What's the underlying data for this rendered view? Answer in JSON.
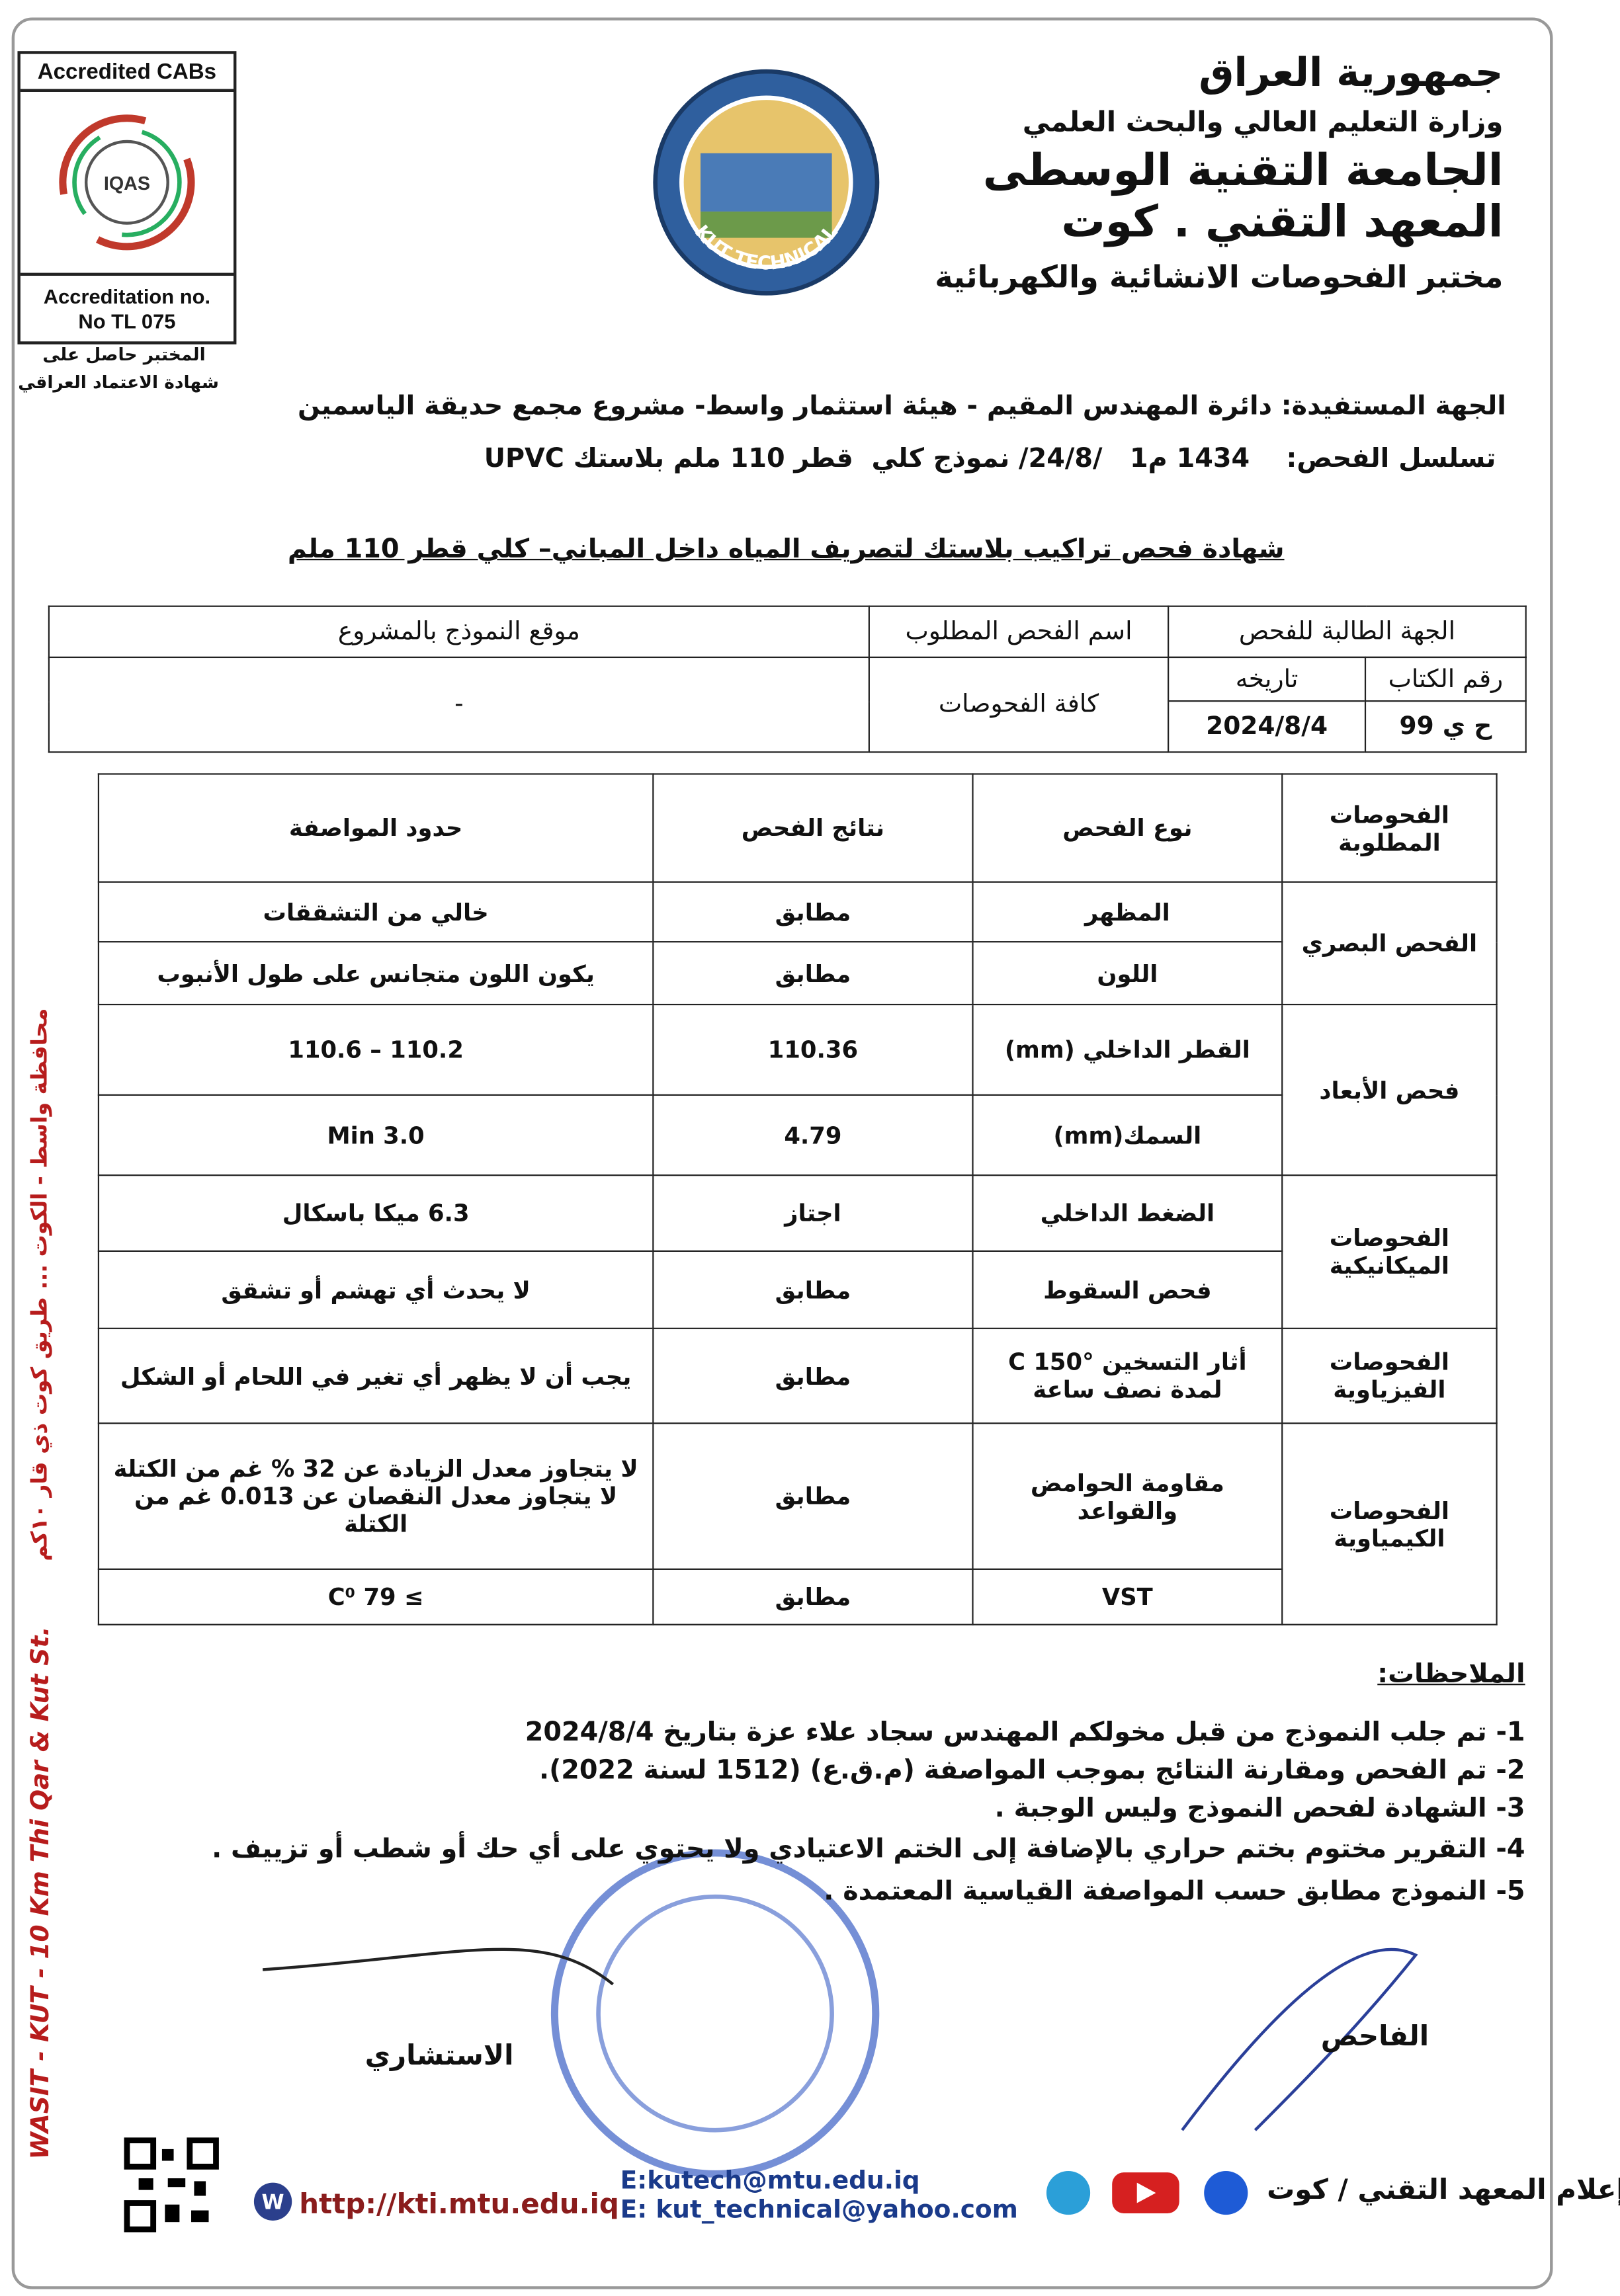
{
  "accreditation": {
    "title": "Accredited CABs",
    "logo_text": "IQAS",
    "number_label": "Accreditation no.",
    "number": "No TL 075",
    "note_line1": "المختبر حاصل على",
    "note_line2": "شهادة الاعتماد العراقي"
  },
  "logo": {
    "text": "KUT TECHNICAL"
  },
  "header": {
    "lines": [
      "جمهورية العراق",
      "وزارة التعليم العالي والبحث العلمي",
      "الجامعة التقنية الوسطى",
      "المعهد التقني . كوت",
      "مختبر الفحوصات الانشائية والكهربائية"
    ]
  },
  "info": {
    "beneficiary": "الجهة المستفيدة: دائرة المهندس المقيم - هيئة استثمار واسط- مشروع مجمع حديقة الياسمين",
    "sequence": "تسلسل الفحص:    1434 م1   /24/8/ نموذج كلي  قطر 110 ملم بلاستك UPVC"
  },
  "certificate_title": "شهادة فحص تراكيب بلاستك لتصريف المياه داخل المباني– كلي  قطر 110 ملم",
  "request_table": {
    "requester": "الجهة الطالبة للفحص",
    "letter_no_label": "رقم الكتاب",
    "letter_date_label": "تاريخه",
    "letter_no": "ح ي 99",
    "letter_date": "2024/8/4",
    "test_name_label": "اسم الفحص المطلوب",
    "test_name": "كافة الفحوصات",
    "location_label": "موقع النموذج بالمشروع",
    "location": "-"
  },
  "results_table": {
    "headers": [
      "الفحوصات المطلوبة",
      "نوع الفحص",
      "نتائج الفحص",
      "حدود المواصفة"
    ],
    "groups": [
      {
        "name": "الفحص البصري",
        "rows": [
          [
            "المظهر",
            "مطابق",
            "خالي من التشققات"
          ],
          [
            "اللون",
            "مطابق",
            "يكون اللون متجانس على طول الأنبوب"
          ]
        ]
      },
      {
        "name": "فحص الأبعاد",
        "rows": [
          [
            "القطر الداخلي (mm)",
            "110.36",
            "110.2 – 110.6"
          ],
          [
            "السمك(mm)",
            "4.79",
            "Min 3.0"
          ]
        ]
      },
      {
        "name": "الفحوصات الميكانيكية",
        "rows": [
          [
            "الضغط الداخلي",
            "اجتاز",
            "6.3 ميكا باسكال"
          ],
          [
            "فحص السقوط",
            "مطابق",
            "لا يحدث أي تهشم أو تشقق"
          ]
        ]
      },
      {
        "name": "الفحوصات الفيزياوية",
        "rows": [
          [
            "أثار التسخين °C 150\nلمدة نصف ساعة",
            "مطابق",
            "يجب أن لا يظهر أي تغير في اللحام أو الشكل"
          ]
        ]
      },
      {
        "name": "الفحوصات الكيمياوية",
        "rows": [
          [
            "مقاومة الحوامض\nوالقواعد",
            "مطابق",
            "لا يتجاوز معدل الزيادة عن 32 % غم من الكتلة\nلا يتجاوز معدل النقصان عن 0.013 غم من الكتلة"
          ],
          [
            "VST",
            "مطابق",
            "≥ 79 C⁰"
          ]
        ]
      }
    ]
  },
  "notes": {
    "title": "الملاحظات:",
    "items": [
      "1- تم جلب النموذج من قبل مخولكم المهندس سجاد علاء عزة  بتاريخ 2024/8/4",
      "2- تم الفحص ومقارنة النتائج بموجب المواصفة (م.ق.ع) (1512 لسنة 2022).",
      "3- الشهادة لفحص النموذج وليس الوجبة .",
      "4- التقرير مختوم بختم حراري بالإضافة إلى الختم الاعتيادي ولا يحتوي على أي حك أو شطب أو تزييف .",
      "5- النموذج مطابق حسب المواصفة القياسية المعتمدة ."
    ]
  },
  "signatures": {
    "examiner": "الفاحص",
    "consultant": "الاستشاري"
  },
  "footer": {
    "website": "http://kti.mtu.edu.iq",
    "email1": "E:kutech@mtu.edu.iq",
    "email2": "E: kut_technical@yahoo.com",
    "social": "إعلام المعهد التقني / كوت"
  },
  "side": {
    "english": "WASIT - KUT - 10 Km Thi Qar & Kut St.",
    "arabic": "محافظة واسط - الكوت ... طريق كوت ذي قار ١٠كم"
  }
}
